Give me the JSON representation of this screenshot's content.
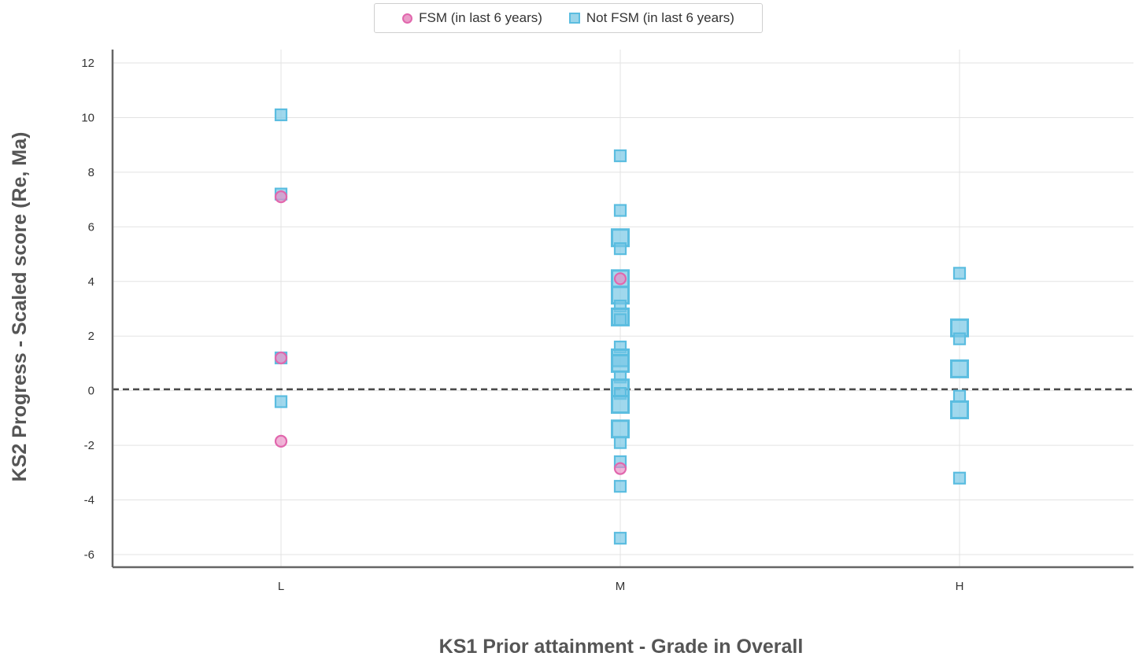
{
  "chart_data": {
    "type": "scatter",
    "xlabel": "KS1 Prior attainment - Grade in Overall",
    "ylabel": "KS2 Progress - Scaled score (Re, Ma)",
    "categories": [
      "L",
      "M",
      "H"
    ],
    "ylim": [
      -6.5,
      12.5
    ],
    "yticks": [
      -6,
      -4,
      -2,
      0,
      2,
      4,
      6,
      8,
      10,
      12
    ],
    "grid": true,
    "reference_line": 0.05,
    "legend": {
      "placement": "top-center"
    },
    "series": [
      {
        "name": "FSM (in last 6 years)",
        "marker": "circle",
        "color": "#e167ad",
        "points": [
          {
            "x": "L",
            "y": 7.1,
            "size": 1
          },
          {
            "x": "L",
            "y": 1.2,
            "size": 1
          },
          {
            "x": "L",
            "y": -1.85,
            "size": 1
          },
          {
            "x": "M",
            "y": 4.1,
            "size": 1
          },
          {
            "x": "M",
            "y": -2.85,
            "size": 1
          }
        ]
      },
      {
        "name": "Not FSM (in last 6 years)",
        "marker": "square",
        "color": "#5bbde0",
        "points": [
          {
            "x": "L",
            "y": 10.1,
            "size": 1
          },
          {
            "x": "L",
            "y": 7.2,
            "size": 1
          },
          {
            "x": "L",
            "y": 1.2,
            "size": 1
          },
          {
            "x": "L",
            "y": -0.4,
            "size": 1
          },
          {
            "x": "M",
            "y": 8.6,
            "size": 1
          },
          {
            "x": "M",
            "y": 6.6,
            "size": 1
          },
          {
            "x": "M",
            "y": 5.6,
            "size": 2
          },
          {
            "x": "M",
            "y": 5.2,
            "size": 1
          },
          {
            "x": "M",
            "y": 4.1,
            "size": 2
          },
          {
            "x": "M",
            "y": 3.5,
            "size": 2
          },
          {
            "x": "M",
            "y": 3.1,
            "size": 1
          },
          {
            "x": "M",
            "y": 2.7,
            "size": 2
          },
          {
            "x": "M",
            "y": 2.6,
            "size": 1
          },
          {
            "x": "M",
            "y": 1.6,
            "size": 1
          },
          {
            "x": "M",
            "y": 1.2,
            "size": 2
          },
          {
            "x": "M",
            "y": 1.0,
            "size": 2
          },
          {
            "x": "M",
            "y": 0.5,
            "size": 1
          },
          {
            "x": "M",
            "y": 0.1,
            "size": 2
          },
          {
            "x": "M",
            "y": -0.1,
            "size": 1
          },
          {
            "x": "M",
            "y": -0.5,
            "size": 2
          },
          {
            "x": "M",
            "y": -1.4,
            "size": 2
          },
          {
            "x": "M",
            "y": -1.9,
            "size": 1
          },
          {
            "x": "M",
            "y": -2.6,
            "size": 1
          },
          {
            "x": "M",
            "y": -3.5,
            "size": 1
          },
          {
            "x": "M",
            "y": -5.4,
            "size": 1
          },
          {
            "x": "H",
            "y": 4.3,
            "size": 1
          },
          {
            "x": "H",
            "y": 2.3,
            "size": 2
          },
          {
            "x": "H",
            "y": 1.9,
            "size": 1
          },
          {
            "x": "H",
            "y": 0.8,
            "size": 2
          },
          {
            "x": "H",
            "y": -0.2,
            "size": 1
          },
          {
            "x": "H",
            "y": -0.7,
            "size": 2
          },
          {
            "x": "H",
            "y": -3.2,
            "size": 1
          }
        ]
      }
    ]
  }
}
